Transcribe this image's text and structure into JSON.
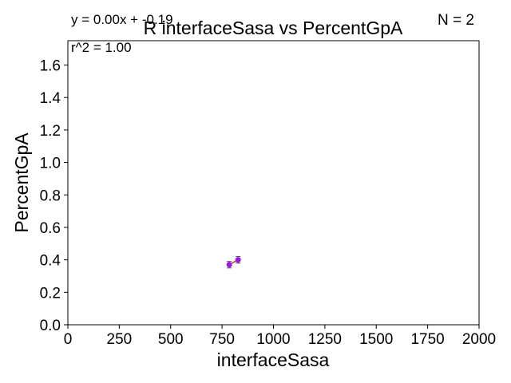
{
  "chart_data": {
    "type": "scatter",
    "title": "R interfaceSasa vs PercentGpA",
    "xlabel": "interfaceSasa",
    "ylabel": "PercentGpA",
    "xlim": [
      0,
      2000
    ],
    "ylim": [
      0,
      1.75
    ],
    "x_ticks": [
      0,
      250,
      500,
      750,
      1000,
      1250,
      1500,
      1750,
      2000
    ],
    "y_ticks": [
      0.0,
      0.2,
      0.4,
      0.6,
      0.8,
      1.0,
      1.2,
      1.4,
      1.6
    ],
    "x_tick_labels": [
      "0",
      "250",
      "500",
      "750",
      "1000",
      "1250",
      "1500",
      "1750",
      "2000"
    ],
    "y_tick_labels": [
      "0.0",
      "0.2",
      "0.4",
      "0.6",
      "0.8",
      "1.0",
      "1.2",
      "1.4",
      "1.6"
    ],
    "grid": false,
    "points": [
      {
        "x": 785,
        "y": 0.37,
        "yerr": 0.02
      },
      {
        "x": 828,
        "y": 0.4,
        "yerr": 0.02
      }
    ],
    "fit_line": {
      "slope": 0.0,
      "intercept": -0.19
    },
    "annotations": {
      "equation": "y = 0.00x + -0.19",
      "r_squared": "r^2 = 1.00",
      "n": "N = 2"
    },
    "colors": {
      "point": "#9b1be0",
      "line": "#d62728",
      "errorbar": "#555555"
    }
  }
}
